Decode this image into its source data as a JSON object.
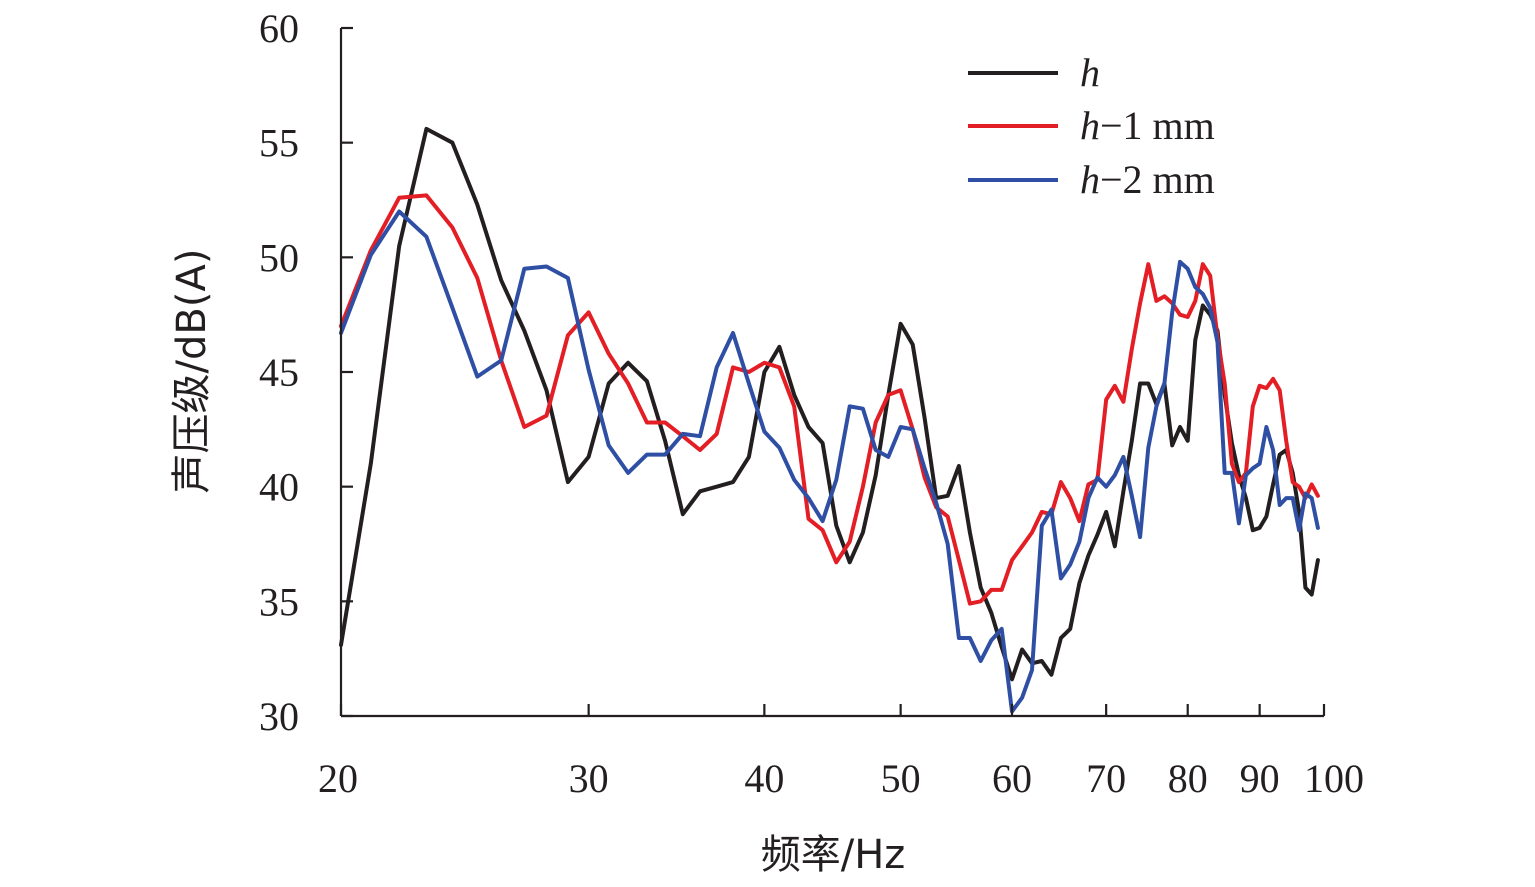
{
  "chart_data": {
    "type": "line",
    "xlabel": "频率/Hz",
    "ylabel": "声压级/dB(A)",
    "xscale": "log",
    "xlim": [
      20,
      100
    ],
    "ylim": [
      30,
      60
    ],
    "xticks": [
      20,
      30,
      40,
      50,
      60,
      70,
      80,
      90,
      100
    ],
    "xtick_labels": [
      "20",
      "30",
      "40",
      "50",
      "60",
      "70",
      "80",
      "90",
      "100"
    ],
    "yticks": [
      30,
      35,
      40,
      45,
      50,
      55,
      60
    ],
    "ytick_labels": [
      "30",
      "35",
      "40",
      "45",
      "50",
      "55",
      "60"
    ],
    "grid": false,
    "legend_position": "top-right",
    "series": [
      {
        "name_italic": "h",
        "name_rest": "",
        "color": "#231f20",
        "points": [
          [
            20,
            33.1
          ],
          [
            21,
            41.0
          ],
          [
            22,
            50.5
          ],
          [
            23,
            55.6
          ],
          [
            24,
            55.0
          ],
          [
            25,
            52.3
          ],
          [
            26,
            49.0
          ],
          [
            27,
            46.8
          ],
          [
            28,
            44.2
          ],
          [
            29,
            40.2
          ],
          [
            30,
            41.3
          ],
          [
            31,
            44.5
          ],
          [
            32,
            45.4
          ],
          [
            33,
            44.6
          ],
          [
            34,
            42.0
          ],
          [
            35,
            38.8
          ],
          [
            36,
            39.8
          ],
          [
            37,
            40.0
          ],
          [
            38,
            40.2
          ],
          [
            39,
            41.3
          ],
          [
            40,
            45.0
          ],
          [
            41,
            46.1
          ],
          [
            42,
            44.0
          ],
          [
            43,
            42.6
          ],
          [
            44,
            41.9
          ],
          [
            45,
            38.3
          ],
          [
            46,
            36.7
          ],
          [
            47,
            38.0
          ],
          [
            48,
            40.5
          ],
          [
            49,
            44.0
          ],
          [
            50,
            47.1
          ],
          [
            51,
            46.2
          ],
          [
            52,
            43.0
          ],
          [
            53,
            39.5
          ],
          [
            54,
            39.6
          ],
          [
            55,
            40.9
          ],
          [
            56,
            38.0
          ],
          [
            57,
            35.6
          ],
          [
            58,
            34.5
          ],
          [
            59,
            33.0
          ],
          [
            60,
            31.6
          ],
          [
            61,
            32.9
          ],
          [
            62,
            32.3
          ],
          [
            63,
            32.4
          ],
          [
            64,
            31.8
          ],
          [
            65,
            33.4
          ],
          [
            66,
            33.8
          ],
          [
            67,
            35.8
          ],
          [
            68,
            37.0
          ],
          [
            69,
            37.9
          ],
          [
            70,
            38.9
          ],
          [
            71,
            37.4
          ],
          [
            72,
            39.8
          ],
          [
            73,
            42.0
          ],
          [
            74,
            44.5
          ],
          [
            75,
            44.5
          ],
          [
            76,
            43.6
          ],
          [
            77,
            44.5
          ],
          [
            78,
            41.8
          ],
          [
            79,
            42.6
          ],
          [
            80,
            42.0
          ],
          [
            81,
            46.4
          ],
          [
            82,
            47.9
          ],
          [
            83,
            47.5
          ],
          [
            84,
            46.8
          ],
          [
            85,
            44.0
          ],
          [
            86,
            41.9
          ],
          [
            87,
            40.5
          ],
          [
            88,
            39.5
          ],
          [
            89,
            38.1
          ],
          [
            90,
            38.2
          ],
          [
            91,
            38.7
          ],
          [
            92,
            40.1
          ],
          [
            93,
            41.4
          ],
          [
            94,
            41.6
          ],
          [
            95,
            40.6
          ],
          [
            96,
            38.9
          ],
          [
            97,
            35.6
          ],
          [
            98,
            35.3
          ],
          [
            99,
            36.8
          ]
        ]
      },
      {
        "name_italic": "h",
        "name_rest": "−1 mm",
        "color": "#e31e24",
        "points": [
          [
            20,
            47.0
          ],
          [
            21,
            50.3
          ],
          [
            22,
            52.6
          ],
          [
            23,
            52.7
          ],
          [
            24,
            51.3
          ],
          [
            25,
            49.1
          ],
          [
            26,
            45.5
          ],
          [
            27,
            42.6
          ],
          [
            28,
            43.1
          ],
          [
            29,
            46.6
          ],
          [
            30,
            47.6
          ],
          [
            31,
            45.8
          ],
          [
            32,
            44.5
          ],
          [
            33,
            42.8
          ],
          [
            34,
            42.8
          ],
          [
            35,
            42.2
          ],
          [
            36,
            41.6
          ],
          [
            37,
            42.3
          ],
          [
            38,
            45.2
          ],
          [
            39,
            45.0
          ],
          [
            40,
            45.4
          ],
          [
            41,
            45.2
          ],
          [
            42,
            43.5
          ],
          [
            43,
            38.6
          ],
          [
            44,
            38.1
          ],
          [
            45,
            36.7
          ],
          [
            46,
            37.6
          ],
          [
            47,
            40.0
          ],
          [
            48,
            42.8
          ],
          [
            49,
            44.0
          ],
          [
            50,
            44.2
          ],
          [
            51,
            42.5
          ],
          [
            52,
            40.4
          ],
          [
            53,
            39.1
          ],
          [
            54,
            38.7
          ],
          [
            55,
            36.8
          ],
          [
            56,
            34.9
          ],
          [
            57,
            35.0
          ],
          [
            58,
            35.5
          ],
          [
            59,
            35.5
          ],
          [
            60,
            36.8
          ],
          [
            61,
            37.4
          ],
          [
            62,
            38.0
          ],
          [
            63,
            38.9
          ],
          [
            64,
            38.8
          ],
          [
            65,
            40.2
          ],
          [
            66,
            39.5
          ],
          [
            67,
            38.5
          ],
          [
            68,
            40.1
          ],
          [
            69,
            40.3
          ],
          [
            70,
            43.8
          ],
          [
            71,
            44.4
          ],
          [
            72,
            43.7
          ],
          [
            73,
            46.0
          ],
          [
            74,
            48.0
          ],
          [
            75,
            49.7
          ],
          [
            76,
            48.1
          ],
          [
            77,
            48.3
          ],
          [
            78,
            48.0
          ],
          [
            79,
            47.5
          ],
          [
            80,
            47.4
          ],
          [
            81,
            48.1
          ],
          [
            82,
            49.7
          ],
          [
            83,
            49.2
          ],
          [
            84,
            46.5
          ],
          [
            85,
            44.5
          ],
          [
            86,
            41.0
          ],
          [
            87,
            40.2
          ],
          [
            88,
            40.6
          ],
          [
            89,
            43.5
          ],
          [
            90,
            44.4
          ],
          [
            91,
            44.3
          ],
          [
            92,
            44.7
          ],
          [
            93,
            44.2
          ],
          [
            94,
            42.0
          ],
          [
            95,
            40.2
          ],
          [
            96,
            40.0
          ],
          [
            97,
            39.5
          ],
          [
            98,
            40.1
          ],
          [
            99,
            39.6
          ]
        ]
      },
      {
        "name_italic": "h",
        "name_rest": "−2 mm",
        "color": "#2e4fa3",
        "points": [
          [
            20,
            46.7
          ],
          [
            21,
            50.1
          ],
          [
            22,
            52.0
          ],
          [
            23,
            50.9
          ],
          [
            24,
            47.8
          ],
          [
            25,
            44.8
          ],
          [
            26,
            45.5
          ],
          [
            27,
            49.5
          ],
          [
            28,
            49.6
          ],
          [
            29,
            49.1
          ],
          [
            30,
            45.1
          ],
          [
            31,
            41.8
          ],
          [
            32,
            40.6
          ],
          [
            33,
            41.4
          ],
          [
            34,
            41.4
          ],
          [
            35,
            42.3
          ],
          [
            36,
            42.2
          ],
          [
            37,
            45.2
          ],
          [
            38,
            46.7
          ],
          [
            39,
            44.5
          ],
          [
            40,
            42.4
          ],
          [
            41,
            41.7
          ],
          [
            42,
            40.3
          ],
          [
            43,
            39.5
          ],
          [
            44,
            38.5
          ],
          [
            45,
            40.3
          ],
          [
            46,
            43.5
          ],
          [
            47,
            43.4
          ],
          [
            48,
            41.6
          ],
          [
            49,
            41.3
          ],
          [
            50,
            42.6
          ],
          [
            51,
            42.5
          ],
          [
            52,
            40.8
          ],
          [
            53,
            39.3
          ],
          [
            54,
            37.5
          ],
          [
            55,
            33.4
          ],
          [
            56,
            33.4
          ],
          [
            57,
            32.4
          ],
          [
            58,
            33.3
          ],
          [
            59,
            33.8
          ],
          [
            60,
            30.2
          ],
          [
            61,
            30.8
          ],
          [
            62,
            32.0
          ],
          [
            63,
            38.3
          ],
          [
            64,
            39.0
          ],
          [
            65,
            36.0
          ],
          [
            66,
            36.6
          ],
          [
            67,
            37.6
          ],
          [
            68,
            39.5
          ],
          [
            69,
            40.4
          ],
          [
            70,
            40.0
          ],
          [
            71,
            40.5
          ],
          [
            72,
            41.3
          ],
          [
            73,
            39.6
          ],
          [
            74,
            37.8
          ],
          [
            75,
            41.7
          ],
          [
            76,
            43.5
          ],
          [
            77,
            44.5
          ],
          [
            78,
            47.6
          ],
          [
            79,
            49.8
          ],
          [
            80,
            49.5
          ],
          [
            81,
            48.7
          ],
          [
            82,
            48.4
          ],
          [
            83,
            47.8
          ],
          [
            84,
            46.3
          ],
          [
            85,
            40.6
          ],
          [
            86,
            40.6
          ],
          [
            87,
            38.4
          ],
          [
            88,
            40.5
          ],
          [
            89,
            40.8
          ],
          [
            90,
            41.0
          ],
          [
            91,
            42.6
          ],
          [
            92,
            41.6
          ],
          [
            93,
            39.2
          ],
          [
            94,
            39.5
          ],
          [
            95,
            39.5
          ],
          [
            96,
            38.1
          ],
          [
            97,
            39.7
          ],
          [
            98,
            39.5
          ],
          [
            99,
            38.2
          ]
        ]
      }
    ]
  }
}
